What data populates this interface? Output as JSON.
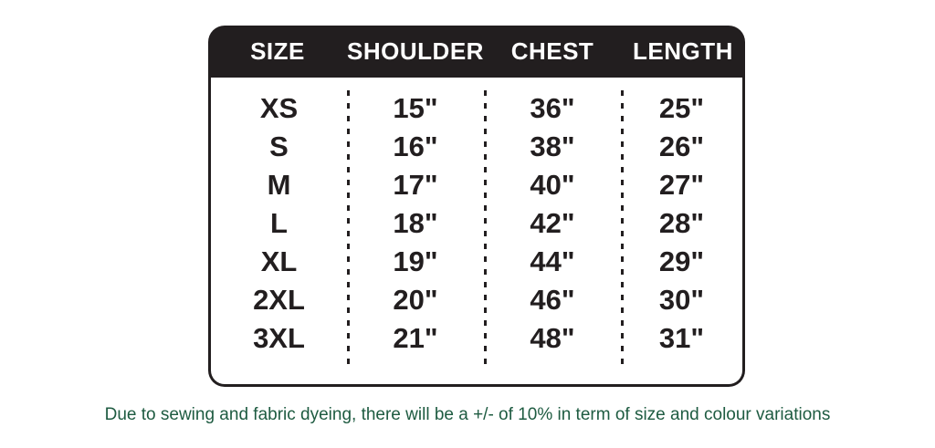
{
  "chart_data": {
    "type": "table",
    "columns": [
      "SIZE",
      "SHOULDER",
      "CHEST",
      "LENGTH"
    ],
    "rows": [
      [
        "XS",
        "15\"",
        "36\"",
        "25\""
      ],
      [
        "S",
        "16\"",
        "38\"",
        "26\""
      ],
      [
        "M",
        "17\"",
        "40\"",
        "27\""
      ],
      [
        "L",
        "18\"",
        "42\"",
        "28\""
      ],
      [
        "XL",
        "19\"",
        "44\"",
        "29\""
      ],
      [
        "2XL",
        "20\"",
        "46\"",
        "30\""
      ],
      [
        "3XL",
        "21\"",
        "48\"",
        "31\""
      ]
    ],
    "layout_hints": {
      "header_style": "black band, white bold text, rounded top corners",
      "column_separators": "dashed vertical lines in body only"
    }
  },
  "note": "Due to sewing and fabric dyeing, there will be a +/- of 10% in term of size and colour variations",
  "colors": {
    "table_black": "#221e1f",
    "header_text": "#ffffff",
    "note_green": "#1e5b41",
    "background": "#ffffff"
  }
}
